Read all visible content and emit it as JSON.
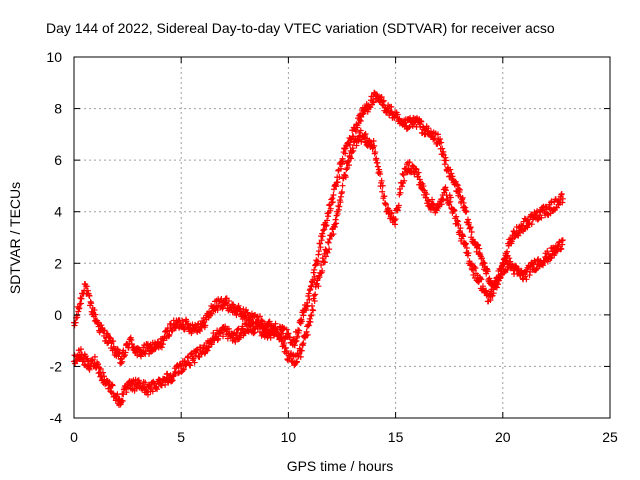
{
  "chart_data": {
    "type": "scatter",
    "title": "Day 144 of 2022, Sidereal Day-to-day VTEC variation (SDTVAR) for receiver acso",
    "xlabel": "GPS time / hours",
    "ylabel": "SDTVAR / TECUs",
    "xlim": [
      0,
      25
    ],
    "ylim": [
      -4,
      10
    ],
    "xticks": [
      0,
      5,
      10,
      15,
      20,
      25
    ],
    "yticks": [
      -4,
      -2,
      0,
      2,
      4,
      6,
      8,
      10
    ],
    "grid": true,
    "marker": "+",
    "series": [
      {
        "name": "SDTVAR (upper trace)",
        "color": "#ff0000",
        "x": [
          0.0,
          0.5,
          0.8,
          1.2,
          1.8,
          2.2,
          2.6,
          3.0,
          3.5,
          4.0,
          4.5,
          5.0,
          5.5,
          6.0,
          6.5,
          7.0,
          7.5,
          8.0,
          8.5,
          9.0,
          9.5,
          10.0,
          10.3,
          10.6,
          11.0,
          11.3,
          11.6,
          12.0,
          12.3,
          12.6,
          13.0,
          13.3,
          13.6,
          14.0,
          14.3,
          14.6,
          15.0,
          15.3,
          15.6,
          16.0,
          16.3,
          16.6,
          17.0,
          17.3,
          17.6,
          18.0,
          18.3,
          18.6,
          19.0,
          19.3,
          19.6,
          20.0,
          20.3,
          20.6,
          21.0,
          21.3,
          21.6,
          22.0,
          22.3,
          22.6,
          22.8
        ],
        "y": [
          -0.5,
          1.2,
          0.3,
          -0.5,
          -1.2,
          -1.8,
          -1.0,
          -1.5,
          -1.3,
          -1.2,
          -0.5,
          -0.3,
          -0.5,
          -0.4,
          0.3,
          0.5,
          0.2,
          0.0,
          -0.2,
          -0.4,
          -0.6,
          -0.8,
          -1.0,
          -0.2,
          0.8,
          2.0,
          3.2,
          4.3,
          5.3,
          6.3,
          7.0,
          7.6,
          8.0,
          8.4,
          8.3,
          8.0,
          7.7,
          7.3,
          7.4,
          7.5,
          7.2,
          7.0,
          6.8,
          6.0,
          5.3,
          4.7,
          3.8,
          3.0,
          2.2,
          1.5,
          1.2,
          1.8,
          2.7,
          3.2,
          3.5,
          3.7,
          3.9,
          4.0,
          4.2,
          4.4,
          4.5
        ]
      },
      {
        "name": "SDTVAR (lower trace)",
        "color": "#ff0000",
        "x": [
          0.0,
          0.3,
          0.7,
          1.0,
          1.4,
          1.8,
          2.1,
          2.5,
          3.0,
          3.5,
          4.0,
          4.5,
          5.0,
          5.5,
          6.0,
          6.5,
          7.0,
          7.5,
          8.0,
          8.5,
          9.0,
          9.5,
          10.0,
          10.3,
          10.6,
          11.0,
          11.3,
          11.6,
          12.0,
          12.3,
          12.6,
          13.0,
          13.3,
          13.6,
          14.0,
          14.3,
          14.6,
          15.0,
          15.3,
          15.6,
          16.0,
          16.3,
          16.6,
          17.0,
          17.3,
          17.6,
          18.0,
          18.3,
          18.6,
          19.0,
          19.3,
          19.6,
          20.0,
          20.3,
          20.6,
          21.0,
          21.3,
          21.6,
          22.0,
          22.3,
          22.6,
          22.8
        ],
        "y": [
          -1.8,
          -1.5,
          -2.0,
          -1.8,
          -2.5,
          -2.9,
          -3.4,
          -2.8,
          -2.7,
          -2.9,
          -2.6,
          -2.4,
          -2.0,
          -1.7,
          -1.4,
          -0.9,
          -0.6,
          -0.9,
          -0.5,
          -0.5,
          -0.7,
          -0.6,
          -1.6,
          -1.8,
          -1.4,
          -0.3,
          1.0,
          2.0,
          3.0,
          4.0,
          5.3,
          6.5,
          7.0,
          6.8,
          6.5,
          5.2,
          4.0,
          3.7,
          5.2,
          5.8,
          5.5,
          4.8,
          4.3,
          4.1,
          4.8,
          4.3,
          3.2,
          2.5,
          1.8,
          1.2,
          0.6,
          1.0,
          1.8,
          2.0,
          1.7,
          1.5,
          1.8,
          2.0,
          2.2,
          2.4,
          2.6,
          2.9
        ]
      }
    ]
  }
}
